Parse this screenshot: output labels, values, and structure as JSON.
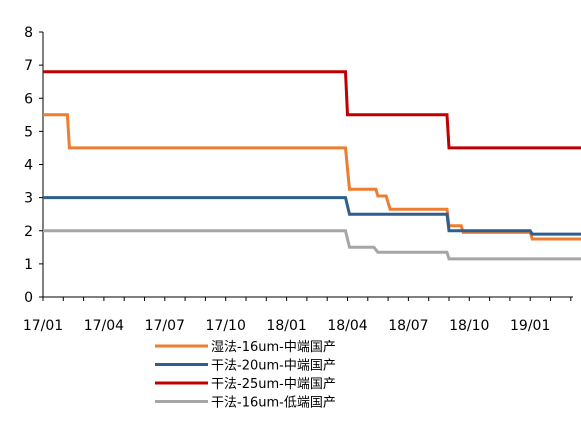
{
  "chart_data": {
    "type": "line",
    "title": "",
    "xlabel": "",
    "ylabel": "",
    "ylim": [
      0,
      8
    ],
    "yticks": [
      "0",
      "1",
      "2",
      "3",
      "4",
      "5",
      "6",
      "7",
      "8"
    ],
    "xlim": [
      0,
      27.3
    ],
    "xticks": [
      "17/01",
      "17/04",
      "17/07",
      "17/10",
      "18/01",
      "18/04",
      "18/07",
      "18/10",
      "19/01"
    ],
    "x_unit": "months since 17/01",
    "grid": false,
    "legend_position": "bottom",
    "series": [
      {
        "name": "湿法-16um-中端国产",
        "color": "#ED7D31",
        "points": [
          [
            0,
            5.5
          ],
          [
            1.2,
            5.5
          ],
          [
            1.3,
            4.5
          ],
          [
            14.9,
            4.5
          ],
          [
            15.1,
            3.25
          ],
          [
            16.4,
            3.25
          ],
          [
            16.5,
            3.05
          ],
          [
            16.9,
            3.05
          ],
          [
            17.1,
            2.65
          ],
          [
            19.9,
            2.65
          ],
          [
            20.0,
            2.15
          ],
          [
            20.6,
            2.15
          ],
          [
            20.7,
            1.95
          ],
          [
            24.0,
            1.95
          ],
          [
            24.1,
            1.75
          ],
          [
            27.3,
            1.75
          ]
        ]
      },
      {
        "name": "干法-20um-中端国产",
        "color": "#2E5E8E",
        "points": [
          [
            0,
            3.0
          ],
          [
            14.9,
            3.0
          ],
          [
            15.1,
            2.5
          ],
          [
            19.9,
            2.5
          ],
          [
            20.0,
            2.0
          ],
          [
            24.0,
            2.0
          ],
          [
            24.1,
            1.9
          ],
          [
            27.3,
            1.9
          ]
        ]
      },
      {
        "name": "干法-25um-中端国产",
        "color": "#C00000",
        "points": [
          [
            0,
            6.8
          ],
          [
            14.9,
            6.8
          ],
          [
            15.0,
            5.5
          ],
          [
            19.9,
            5.5
          ],
          [
            20.0,
            4.5
          ],
          [
            27.3,
            4.5
          ]
        ]
      },
      {
        "name": "干法-16um-低端国产",
        "color": "#A6A6A6",
        "points": [
          [
            0,
            2.0
          ],
          [
            14.9,
            2.0
          ],
          [
            15.1,
            1.5
          ],
          [
            16.3,
            1.5
          ],
          [
            16.5,
            1.35
          ],
          [
            19.9,
            1.35
          ],
          [
            20.0,
            1.15
          ],
          [
            27.3,
            1.15
          ]
        ]
      }
    ]
  }
}
